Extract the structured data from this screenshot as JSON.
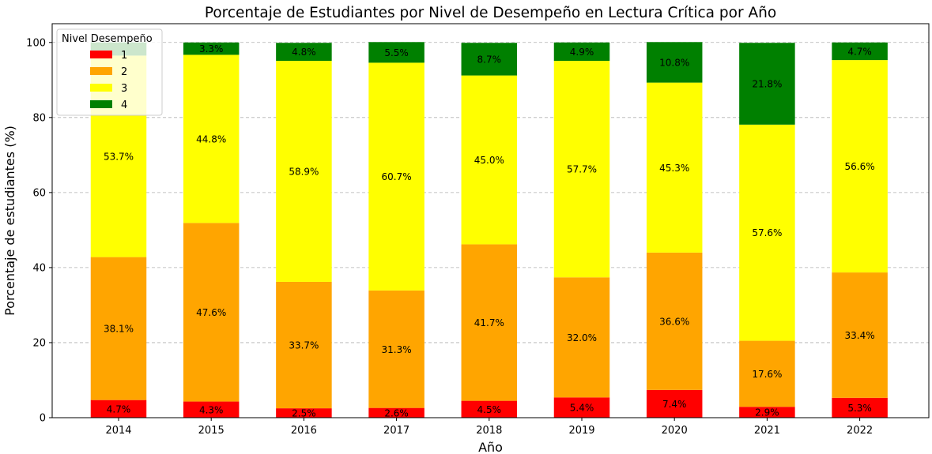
{
  "chart_data": {
    "type": "bar",
    "stacked": true,
    "title": "Porcentaje de Estudiantes por Nivel de Desempeño en Lectura Crítica por Año",
    "xlabel": "Año",
    "ylabel": "Porcentaje de estudiantes (%)",
    "ylim": [
      0,
      105
    ],
    "yticks": [
      0,
      20,
      40,
      60,
      80,
      100
    ],
    "grid": "y-dashed",
    "categories": [
      "2014",
      "2015",
      "2016",
      "2017",
      "2018",
      "2019",
      "2020",
      "2021",
      "2022"
    ],
    "series": [
      {
        "name": "1",
        "color": "#ff0000",
        "values": [
          4.7,
          4.3,
          2.5,
          2.6,
          4.5,
          5.4,
          7.4,
          2.9,
          5.3
        ]
      },
      {
        "name": "2",
        "color": "#ffa500",
        "values": [
          38.1,
          47.6,
          33.7,
          31.3,
          41.7,
          32.0,
          36.6,
          17.6,
          33.4
        ]
      },
      {
        "name": "3",
        "color": "#ffff00",
        "values": [
          53.7,
          44.8,
          58.9,
          60.7,
          45.0,
          57.7,
          45.3,
          57.6,
          56.6
        ]
      },
      {
        "name": "4",
        "color": "#008000",
        "values": [
          3.5,
          3.3,
          4.8,
          5.5,
          8.7,
          4.9,
          10.8,
          21.8,
          4.7
        ]
      }
    ],
    "data_labels": [
      [
        "4.7%",
        "4.3%",
        "2.5%",
        "2.6%",
        "4.5%",
        "5.4%",
        "7.4%",
        "2.9%",
        "5.3%"
      ],
      [
        "38.1%",
        "47.6%",
        "33.7%",
        "31.3%",
        "41.7%",
        "32.0%",
        "36.6%",
        "17.6%",
        "33.4%"
      ],
      [
        "53.7%",
        "44.8%",
        "58.9%",
        "60.7%",
        "45.0%",
        "57.7%",
        "45.3%",
        "57.6%",
        "56.6%"
      ],
      [
        "",
        "3.3%",
        "4.8%",
        "5.5%",
        "8.7%",
        "4.9%",
        "10.8%",
        "21.8%",
        "4.7%"
      ]
    ],
    "legend": {
      "title": "Nivel Desempeño",
      "position": "top-left"
    }
  }
}
